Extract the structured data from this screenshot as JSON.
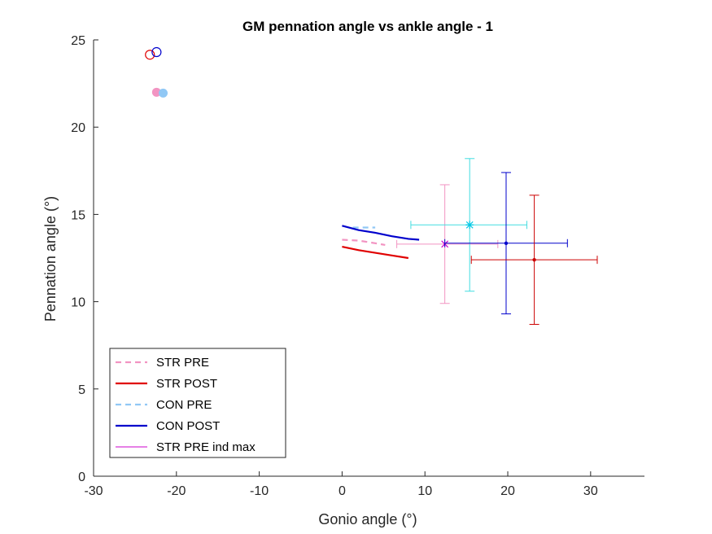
{
  "chart_data": {
    "type": "line",
    "title": "GM pennation angle vs ankle angle - 1",
    "xlabel": "Gonio angle (°)",
    "ylabel": "Pennation angle (°)",
    "xlim": [
      -30,
      36.5
    ],
    "ylim": [
      0,
      25
    ],
    "xticks": [
      -30,
      -20,
      -10,
      0,
      10,
      20,
      30
    ],
    "yticks": [
      0,
      5,
      10,
      15,
      20,
      25
    ],
    "grid": false,
    "legend_position": "bottom-left",
    "series": [
      {
        "name": "STR PRE",
        "color": "#f294c2",
        "style": "dashed",
        "x": [
          0.0,
          2.0,
          4.0,
          5.2
        ],
        "y": [
          13.55,
          13.5,
          13.35,
          13.25
        ]
      },
      {
        "name": "STR POST",
        "color": "#e00000",
        "style": "solid",
        "x": [
          0.0,
          2.0,
          4.0,
          6.0,
          8.0
        ],
        "y": [
          13.15,
          12.95,
          12.8,
          12.65,
          12.5
        ]
      },
      {
        "name": "CON PRE",
        "color": "#91c8f5",
        "style": "dashed",
        "x": [
          1.3,
          4.0
        ],
        "y": [
          14.25,
          14.25
        ]
      },
      {
        "name": "CON POST",
        "color": "#0000cc",
        "style": "solid",
        "x": [
          0.0,
          2.0,
          4.0,
          6.0,
          8.0,
          9.3
        ],
        "y": [
          14.35,
          14.1,
          13.95,
          13.75,
          13.6,
          13.55
        ]
      }
    ],
    "individual_max": [
      {
        "name": "STR PRE ind max",
        "color": "#cc00cc",
        "marker": "x",
        "x": 12.4,
        "y": 13.3,
        "xerr": [
          6.6,
          18.8
        ],
        "yerr": [
          9.9,
          16.7
        ],
        "errcolor": "#f294c2"
      },
      {
        "name": "",
        "color": "#00c8e6",
        "marker": "*",
        "x": 15.4,
        "y": 14.4,
        "xerr": [
          8.3,
          22.3
        ],
        "yerr": [
          10.6,
          18.2
        ],
        "errcolor": "#42dde0"
      },
      {
        "name": "",
        "color": "#0000cc",
        "marker": ".",
        "x": 19.8,
        "y": 13.35,
        "xerr": [
          12.4,
          27.2
        ],
        "yerr": [
          9.3,
          17.4
        ],
        "errcolor": "#0000cc"
      },
      {
        "name": "",
        "color": "#cc0000",
        "marker": ".",
        "x": 23.2,
        "y": 12.4,
        "xerr": [
          15.6,
          30.8
        ],
        "yerr": [
          8.7,
          16.1
        ],
        "errcolor": "#cc0000"
      }
    ],
    "open_markers": [
      {
        "x": -23.2,
        "y": 24.15,
        "color": "#e00000"
      },
      {
        "x": -22.4,
        "y": 24.3,
        "color": "#0000cc"
      }
    ],
    "filled_markers": [
      {
        "x": -22.4,
        "y": 22.0,
        "color": "#f294c2"
      },
      {
        "x": -21.6,
        "y": 21.95,
        "color": "#91c8f5"
      }
    ],
    "legend": [
      {
        "label": "STR PRE",
        "color": "#f294c2",
        "style": "dashed"
      },
      {
        "label": "STR POST",
        "color": "#e00000",
        "style": "solid"
      },
      {
        "label": "CON PRE",
        "color": "#91c8f5",
        "style": "dashed"
      },
      {
        "label": "CON POST",
        "color": "#0000cc",
        "style": "solid"
      },
      {
        "label": "STR PRE ind max",
        "color": "#cc00cc",
        "style": "thin"
      }
    ]
  }
}
